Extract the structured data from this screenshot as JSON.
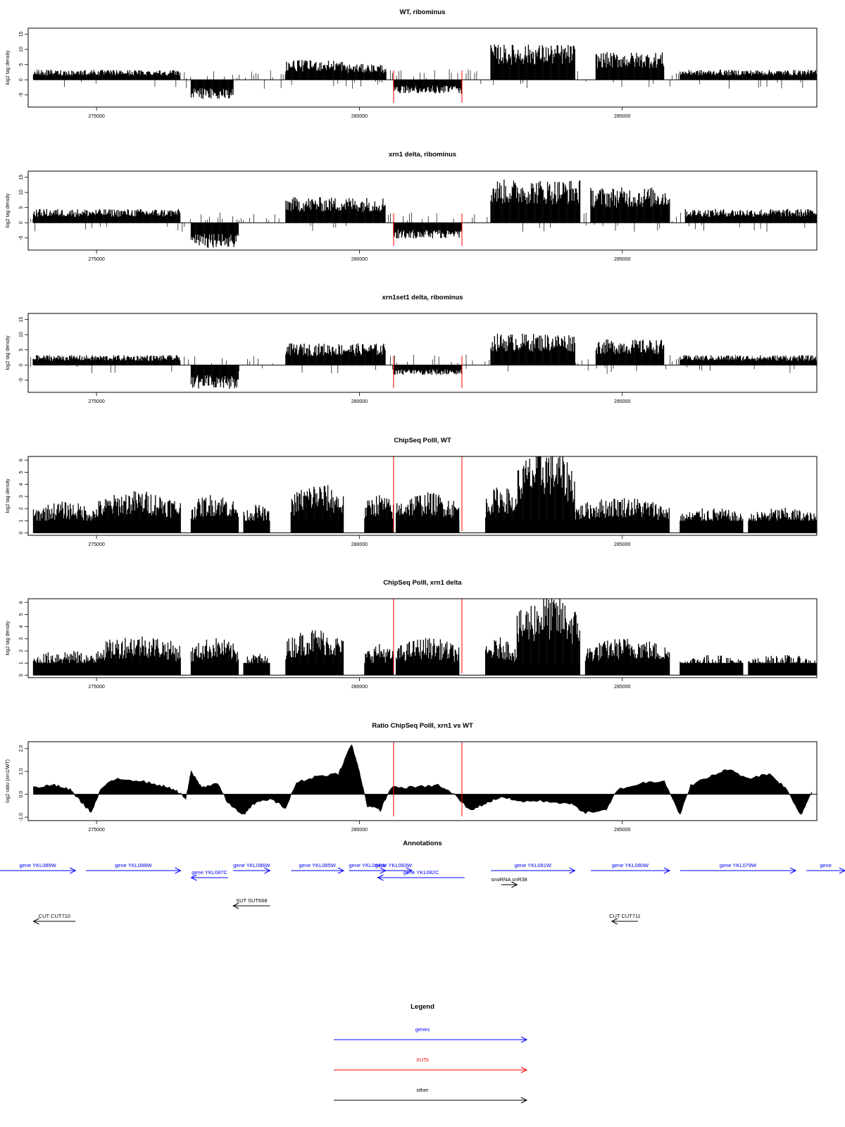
{
  "chart_data": [
    {
      "id": "wt",
      "type": "bar",
      "title": "WT, ribominus",
      "ylabel": "log2 tag density",
      "xlim": [
        273700,
        288700
      ],
      "ylim": [
        -9,
        17
      ],
      "yticks": [
        "15",
        "10",
        "5",
        "0",
        "-5"
      ],
      "ytick_values": [
        15,
        10,
        5,
        0,
        -5
      ],
      "xticks": [
        "275000",
        "280000",
        "285000"
      ],
      "xtick_values": [
        275000,
        280000,
        285000
      ],
      "mark_lines": [
        280650,
        281950
      ],
      "series": [
        {
          "id": "wt-plus-1",
          "strand": "+",
          "start": 273800,
          "end": 276600,
          "level": 2.5
        },
        {
          "id": "wt-plus-2",
          "strand": "+",
          "start": 278600,
          "end": 279700,
          "level": 5
        },
        {
          "id": "wt-plus-3",
          "strand": "+",
          "start": 279700,
          "end": 280500,
          "level": 4
        },
        {
          "id": "wt-plus-4",
          "strand": "+",
          "start": 282500,
          "end": 284100,
          "level": 9
        },
        {
          "id": "wt-plus-5",
          "strand": "+",
          "start": 284500,
          "end": 285800,
          "level": 7
        },
        {
          "id": "wt-plus-6",
          "strand": "+",
          "start": 286100,
          "end": 288700,
          "level": 2.5
        },
        {
          "id": "wt-minus-1",
          "strand": "-",
          "start": 276800,
          "end": 277600,
          "level": 5
        },
        {
          "id": "wt-minus-2",
          "strand": "-",
          "start": 280650,
          "end": 281950,
          "level": 3.5
        }
      ]
    },
    {
      "id": "xrn1",
      "type": "bar",
      "title": "xrn1 delta, ribominus",
      "ylabel": "log2 tag density",
      "xlim": [
        273700,
        288700
      ],
      "ylim": [
        -9,
        17
      ],
      "yticks": [
        "15",
        "10",
        "5",
        "0",
        "-5"
      ],
      "ytick_values": [
        15,
        10,
        5,
        0,
        -5
      ],
      "xticks": [
        "275000",
        "280000",
        "285000"
      ],
      "xtick_values": [
        275000,
        280000,
        285000
      ],
      "mark_lines": [
        280650,
        281950
      ],
      "series": [
        {
          "id": "xrn1-plus-1",
          "strand": "+",
          "start": 273800,
          "end": 276600,
          "level": 3.5
        },
        {
          "id": "xrn1-plus-2",
          "strand": "+",
          "start": 278600,
          "end": 280500,
          "level": 6.5
        },
        {
          "id": "xrn1-plus-3",
          "strand": "+",
          "start": 282500,
          "end": 284200,
          "level": 11
        },
        {
          "id": "xrn1-plus-4",
          "strand": "+",
          "start": 284400,
          "end": 285900,
          "level": 9
        },
        {
          "id": "xrn1-plus-5",
          "strand": "+",
          "start": 286200,
          "end": 288700,
          "level": 3.5
        },
        {
          "id": "xrn1-minus-1",
          "strand": "-",
          "start": 276800,
          "end": 277700,
          "level": 6.5
        },
        {
          "id": "xrn1-minus-2",
          "strand": "-",
          "start": 280650,
          "end": 281950,
          "level": 4
        }
      ]
    },
    {
      "id": "xrn1set1",
      "type": "bar",
      "title": "xrn1set1 delta, ribominus",
      "ylabel": "log2 tag density",
      "xlim": [
        273700,
        288700
      ],
      "ylim": [
        -9,
        17
      ],
      "yticks": [
        "15",
        "10",
        "5",
        "0",
        "-5"
      ],
      "ytick_values": [
        15,
        10,
        5,
        0,
        -5
      ],
      "xticks": [
        "275000",
        "280000",
        "285000"
      ],
      "xtick_values": [
        275000,
        280000,
        285000
      ],
      "mark_lines": [
        280650,
        281950
      ],
      "series": [
        {
          "id": "set1-plus-1",
          "strand": "+",
          "start": 273800,
          "end": 276600,
          "level": 2.5
        },
        {
          "id": "set1-plus-2",
          "strand": "+",
          "start": 278600,
          "end": 280500,
          "level": 5.5
        },
        {
          "id": "set1-plus-3",
          "strand": "+",
          "start": 282500,
          "end": 284100,
          "level": 8
        },
        {
          "id": "set1-plus-4",
          "strand": "+",
          "start": 284500,
          "end": 285800,
          "level": 6.5
        },
        {
          "id": "set1-plus-5",
          "strand": "+",
          "start": 286100,
          "end": 288700,
          "level": 2.5
        },
        {
          "id": "set1-minus-1",
          "strand": "-",
          "start": 276800,
          "end": 277700,
          "level": 6
        },
        {
          "id": "set1-minus-2",
          "strand": "-",
          "start": 280650,
          "end": 281950,
          "level": 2.5
        }
      ]
    },
    {
      "id": "chip-wt",
      "type": "bar",
      "title": "ChipSeq PolII, WT",
      "ylabel": "log2 tag density",
      "xlim": [
        273700,
        288700
      ],
      "ylim": [
        -0.2,
        6.3
      ],
      "yticks": [
        "6",
        "5",
        "4",
        "3",
        "2",
        "1",
        "0"
      ],
      "ytick_values": [
        6,
        5,
        4,
        3,
        2,
        1,
        0
      ],
      "xticks": [
        "275000",
        "280000",
        "285000"
      ],
      "xtick_values": [
        275000,
        280000,
        285000
      ],
      "mark_lines": [
        280650,
        281950
      ],
      "series": [
        {
          "id": "chipwt-1",
          "start": 273800,
          "end": 275000,
          "level": 2
        },
        {
          "id": "chipwt-2",
          "start": 275000,
          "end": 276600,
          "level": 2.7
        },
        {
          "id": "chipwt-3",
          "start": 276800,
          "end": 277700,
          "level": 2.5
        },
        {
          "id": "chipwt-4",
          "start": 277800,
          "end": 278300,
          "level": 1.8
        },
        {
          "id": "chipwt-5",
          "start": 278700,
          "end": 279700,
          "level": 3.2
        },
        {
          "id": "chipwt-6",
          "start": 280100,
          "end": 280650,
          "level": 2.5
        },
        {
          "id": "chipwt-7",
          "start": 280700,
          "end": 281900,
          "level": 2.6
        },
        {
          "id": "chipwt-8",
          "start": 282400,
          "end": 283000,
          "level": 3
        },
        {
          "id": "chipwt-9",
          "start": 283000,
          "end": 284100,
          "level": 5.5
        },
        {
          "id": "chipwt-10",
          "start": 284100,
          "end": 285900,
          "level": 2.3
        },
        {
          "id": "chipwt-11",
          "start": 286100,
          "end": 287300,
          "level": 1.6
        },
        {
          "id": "chipwt-12",
          "start": 287400,
          "end": 288700,
          "level": 1.6
        }
      ]
    },
    {
      "id": "chip-xrn1",
      "type": "bar",
      "title": "ChipSeq PolII, xrn1 delta",
      "ylabel": "log2 tag density",
      "xlim": [
        273700,
        288700
      ],
      "ylim": [
        -0.2,
        6.3
      ],
      "yticks": [
        "6",
        "5",
        "4",
        "3",
        "2",
        "1",
        "0"
      ],
      "ytick_values": [
        6,
        5,
        4,
        3,
        2,
        1,
        0
      ],
      "xticks": [
        "275000",
        "280000",
        "285000"
      ],
      "xtick_values": [
        275000,
        280000,
        285000
      ],
      "mark_lines": [
        280650,
        281950
      ],
      "series": [
        {
          "id": "chipx-1",
          "start": 273800,
          "end": 275000,
          "level": 1.6
        },
        {
          "id": "chipx-2",
          "start": 275000,
          "end": 276600,
          "level": 2.6
        },
        {
          "id": "chipx-3",
          "start": 276800,
          "end": 277700,
          "level": 2.4
        },
        {
          "id": "chipx-4",
          "start": 277800,
          "end": 278300,
          "level": 1.4
        },
        {
          "id": "chipx-5",
          "start": 278600,
          "end": 279700,
          "level": 3
        },
        {
          "id": "chipx-6",
          "start": 280100,
          "end": 280650,
          "level": 2
        },
        {
          "id": "chipx-7",
          "start": 280700,
          "end": 281900,
          "level": 2.4
        },
        {
          "id": "chipx-8",
          "start": 282400,
          "end": 283000,
          "level": 2.4
        },
        {
          "id": "chipx-9",
          "start": 283000,
          "end": 284200,
          "level": 5.2
        },
        {
          "id": "chipx-10",
          "start": 284300,
          "end": 285900,
          "level": 2.4
        },
        {
          "id": "chipx-11",
          "start": 286100,
          "end": 287300,
          "level": 1.3
        },
        {
          "id": "chipx-12",
          "start": 287400,
          "end": 288700,
          "level": 1.3
        }
      ]
    },
    {
      "id": "ratio",
      "type": "area",
      "title": "Ratio ChipSeq PolII, xrn1 vs WT",
      "ylabel": "log2 ratio (xrn1/WT)",
      "xlim": [
        273700,
        288700
      ],
      "ylim": [
        -1.15,
        2.3
      ],
      "yticks": [
        "2.0",
        "1.0",
        "0.0",
        "-1.0"
      ],
      "ytick_values": [
        2,
        1,
        0,
        -1
      ],
      "xticks": [
        "275000",
        "280000",
        "285000"
      ],
      "xtick_values": [
        275000,
        280000,
        285000
      ],
      "mark_lines": [
        280650,
        281950
      ],
      "points": [
        [
          273800,
          0.3
        ],
        [
          274200,
          0.4
        ],
        [
          274500,
          0.2
        ],
        [
          274700,
          -0.3
        ],
        [
          274900,
          -0.8
        ],
        [
          275100,
          0.3
        ],
        [
          275400,
          0.7
        ],
        [
          275800,
          0.6
        ],
        [
          276200,
          0.4
        ],
        [
          276500,
          0.2
        ],
        [
          276700,
          -0.2
        ],
        [
          276800,
          1.0
        ],
        [
          277000,
          0.3
        ],
        [
          277300,
          0.5
        ],
        [
          277500,
          -0.4
        ],
        [
          277800,
          -0.9
        ],
        [
          278000,
          -0.4
        ],
        [
          278300,
          -0.2
        ],
        [
          278600,
          -0.6
        ],
        [
          278800,
          0.5
        ],
        [
          279200,
          0.8
        ],
        [
          279600,
          0.9
        ],
        [
          279850,
          2.2
        ],
        [
          280000,
          1.0
        ],
        [
          280150,
          -0.5
        ],
        [
          280400,
          -0.7
        ],
        [
          280600,
          0.3
        ],
        [
          281000,
          0.3
        ],
        [
          281500,
          0.4
        ],
        [
          281800,
          0.0
        ],
        [
          282100,
          -0.7
        ],
        [
          282400,
          -0.4
        ],
        [
          282700,
          -0.1
        ],
        [
          283000,
          -0.3
        ],
        [
          283500,
          -0.3
        ],
        [
          284000,
          -0.4
        ],
        [
          284300,
          -0.8
        ],
        [
          284700,
          -0.7
        ],
        [
          284900,
          0.2
        ],
        [
          285400,
          0.5
        ],
        [
          285800,
          0.6
        ],
        [
          286100,
          -0.9
        ],
        [
          286300,
          0.4
        ],
        [
          286700,
          0.8
        ],
        [
          287000,
          1.1
        ],
        [
          287400,
          0.7
        ],
        [
          287800,
          0.9
        ],
        [
          288100,
          0.3
        ],
        [
          288400,
          -0.9
        ],
        [
          288600,
          0.1
        ]
      ]
    }
  ],
  "annotations": {
    "title": "Annotations",
    "xlim": [
      273700,
      288700
    ],
    "items": [
      {
        "id": "ykl089w",
        "label": "gene YKL089W",
        "start": 273100,
        "end": 274600,
        "dir": "+",
        "color": "#0000ff",
        "row": 1
      },
      {
        "id": "ykl088w",
        "label": "gene YKL088W",
        "start": 274800,
        "end": 276600,
        "dir": "+",
        "color": "#0000ff",
        "row": 1
      },
      {
        "id": "ykl087c",
        "label": "gene YKL087C",
        "start": 276800,
        "end": 277500,
        "dir": "-",
        "color": "#0000ff",
        "row": 2
      },
      {
        "id": "ykl086w",
        "label": "gene YKL086W",
        "start": 277600,
        "end": 278300,
        "dir": "+",
        "color": "#0000ff",
        "row": 1
      },
      {
        "id": "ykl085w",
        "label": "gene YKL085W",
        "start": 278700,
        "end": 279700,
        "dir": "+",
        "color": "#0000ff",
        "row": 1
      },
      {
        "id": "ykl084w",
        "label": "gene YKL084W",
        "start": 279800,
        "end": 280500,
        "dir": "+",
        "color": "#0000ff",
        "row": 1
      },
      {
        "id": "ykl083w",
        "label": "gene YKL083W",
        "start": 280300,
        "end": 281000,
        "dir": "+",
        "color": "#0000ff",
        "row": 1
      },
      {
        "id": "ykl082c",
        "label": "gene YKL082C",
        "start": 280350,
        "end": 282000,
        "dir": "-",
        "color": "#0000ff",
        "row": 2
      },
      {
        "id": "snr38",
        "label": "snoRNA snR38",
        "start": 282700,
        "end": 283000,
        "dir": "+",
        "color": "#000000",
        "row": 3
      },
      {
        "id": "ykl081w",
        "label": "gene YKL081W",
        "start": 282500,
        "end": 284100,
        "dir": "+",
        "color": "#0000ff",
        "row": 1
      },
      {
        "id": "ykl080w",
        "label": "gene YKL080W",
        "start": 284400,
        "end": 285900,
        "dir": "+",
        "color": "#0000ff",
        "row": 1
      },
      {
        "id": "ykl079w",
        "label": "gene YKL079W",
        "start": 286100,
        "end": 288300,
        "dir": "+",
        "color": "#0000ff",
        "row": 1
      },
      {
        "id": "ykl078w",
        "label": "gene",
        "start": 288500,
        "end": 290500,
        "dir": "+",
        "color": "#0000ff",
        "row": 1
      },
      {
        "id": "sut668",
        "label": "SUT SUT668",
        "start": 277600,
        "end": 278300,
        "dir": "-",
        "color": "#000000",
        "row": 4
      },
      {
        "id": "cut710",
        "label": "CUT CUT710",
        "start": 273800,
        "end": 274600,
        "dir": "-",
        "color": "#000000",
        "row": 5
      },
      {
        "id": "cut711",
        "label": "CUT CUT711",
        "start": 284800,
        "end": 285300,
        "dir": "-",
        "color": "#000000",
        "row": 5
      }
    ]
  },
  "legend": {
    "title": "Legend",
    "entries": [
      {
        "label": "genes",
        "color": "#0000ff"
      },
      {
        "label": "XUTs",
        "color": "#ff0000"
      },
      {
        "label": "other",
        "color": "#000000"
      }
    ]
  }
}
